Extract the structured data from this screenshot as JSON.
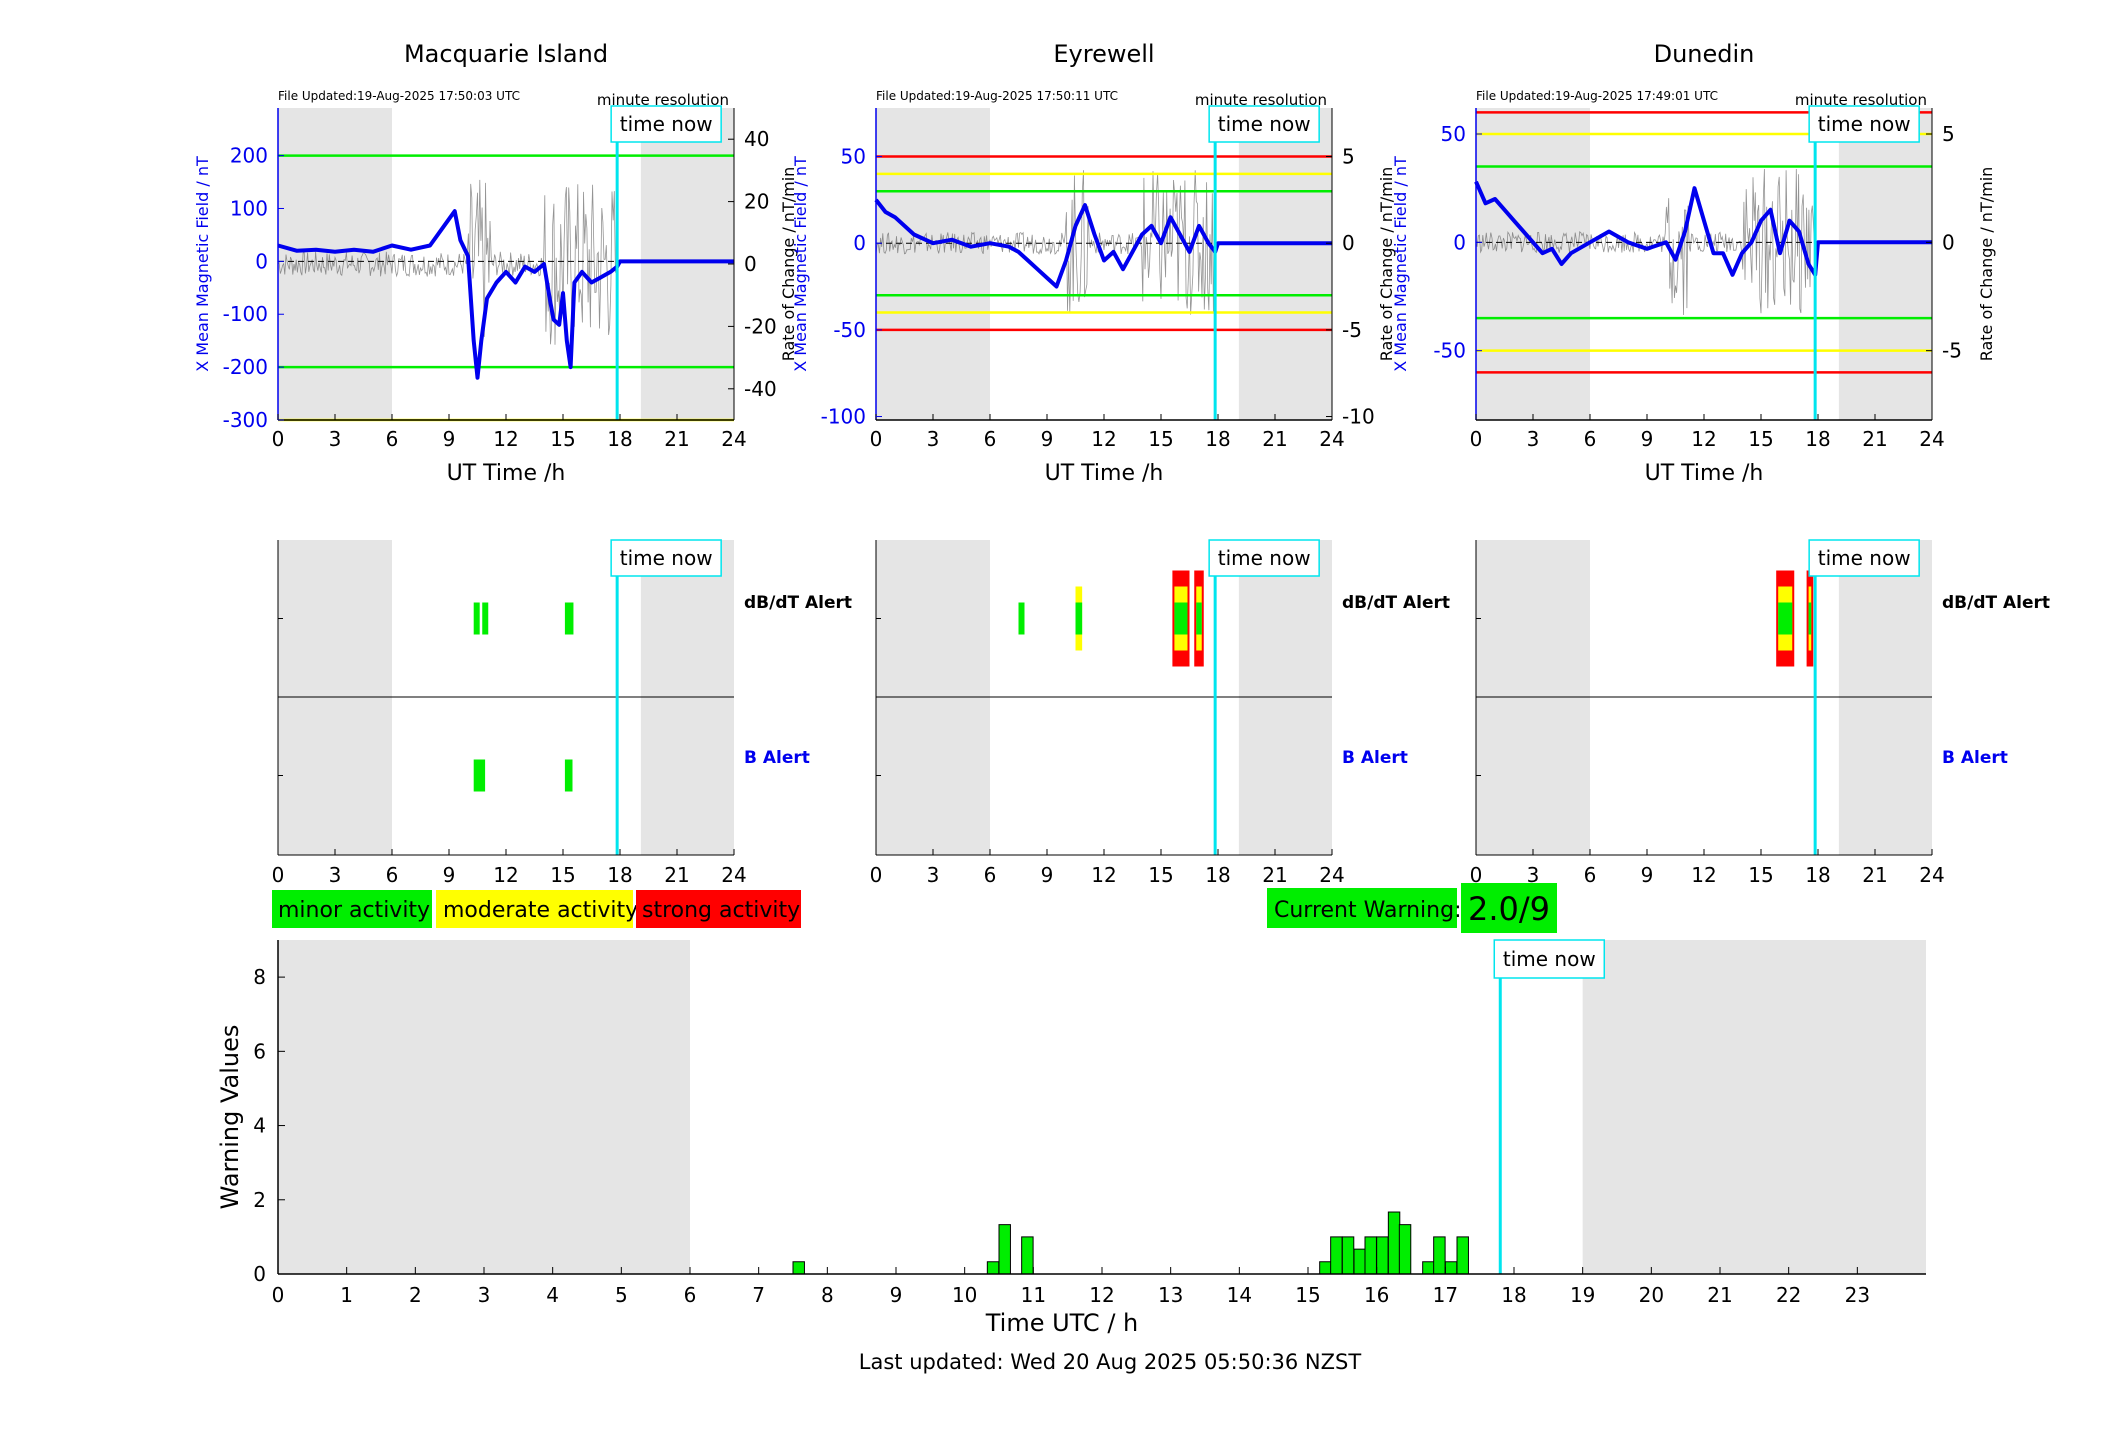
{
  "labels": {
    "time_now": "time now",
    "minute_resolution": "minute resolution",
    "ut_time": "UT Time /h",
    "dbdt_alert": "dB/dT Alert",
    "b_alert": "B Alert"
  },
  "legend": {
    "minor": "minor activity",
    "moderate": "moderate activity",
    "strong": "strong activity"
  },
  "current_warning": {
    "label": "Current Warning:",
    "value": "2.0/9"
  },
  "footer": {
    "last_updated": "Last updated: Wed 20 Aug 2025 05:50:36 NZST"
  },
  "colors": {
    "minor": "#00ee00",
    "moderate": "#ffff00",
    "strong": "#ff0000",
    "cyan": "#00e5ee",
    "blue": "#0000ee",
    "shade": "#e5e5e5"
  },
  "chart_data": [
    {
      "type": "line",
      "title": "Macquarie Island",
      "file_updated": "File Updated:19-Aug-2025 17:50:03 UTC",
      "xlabel": "UT Time /h",
      "xlim": [
        0,
        24
      ],
      "xticks": [
        0,
        3,
        6,
        9,
        12,
        15,
        18,
        21,
        24
      ],
      "ylabel_left": "X Mean Magnetic Field / nT",
      "ylim_left": [
        -300,
        290
      ],
      "yticks_left": [
        -300,
        -200,
        -100,
        0,
        100,
        200
      ],
      "ylabel_right": "Rate of Change / nT/min",
      "ylim_right": [
        -50,
        50
      ],
      "yticks_right": [
        -40,
        -20,
        0,
        20,
        40
      ],
      "thresholds": [
        {
          "value": 200,
          "color": "green"
        },
        {
          "value": -200,
          "color": "green"
        },
        {
          "value": -300,
          "color": "yellow"
        }
      ],
      "time_now": 17.85,
      "series": [
        {
          "name": "X Mean Magnetic Field",
          "x": [
            0,
            1,
            2,
            3,
            4,
            5,
            6,
            7,
            8,
            9,
            9.3,
            9.6,
            10,
            10.3,
            10.5,
            10.7,
            11,
            11.5,
            12,
            12.5,
            13,
            13.5,
            14,
            14.3,
            14.5,
            14.8,
            15,
            15.2,
            15.4,
            15.6,
            16,
            16.5,
            17,
            17.5,
            17.85,
            18,
            20,
            22,
            24
          ],
          "y": [
            30,
            20,
            22,
            18,
            22,
            18,
            30,
            22,
            30,
            80,
            95,
            40,
            10,
            -150,
            -220,
            -150,
            -70,
            -40,
            -20,
            -40,
            -10,
            -20,
            -5,
            -70,
            -110,
            -120,
            -60,
            -150,
            -200,
            -40,
            -20,
            -40,
            -30,
            -20,
            -10,
            0,
            0,
            0,
            0
          ]
        }
      ]
    },
    {
      "type": "line",
      "title": "Eyrewell",
      "file_updated": "File Updated:19-Aug-2025 17:50:11 UTC",
      "xlabel": "UT Time /h",
      "xlim": [
        0,
        24
      ],
      "xticks": [
        0,
        3,
        6,
        9,
        12,
        15,
        18,
        21,
        24
      ],
      "ylabel_left": "X Mean Magnetic Field / nT",
      "ylim_left": [
        -102,
        78
      ],
      "yticks_left": [
        -100,
        -50,
        0,
        50
      ],
      "ylabel_right": "Rate of Change / nT/min",
      "ylim_right": [
        -10.2,
        7.8
      ],
      "yticks_right": [
        -10,
        -5,
        0,
        5
      ],
      "thresholds": [
        {
          "value": 50,
          "color": "red"
        },
        {
          "value": 40,
          "color": "yellow"
        },
        {
          "value": 30,
          "color": "green"
        },
        {
          "value": -30,
          "color": "green"
        },
        {
          "value": -40,
          "color": "yellow"
        },
        {
          "value": -50,
          "color": "red"
        }
      ],
      "time_now": 17.85,
      "series": [
        {
          "name": "X Mean Magnetic Field",
          "x": [
            0,
            0.5,
            1,
            2,
            3,
            4,
            5,
            6,
            7,
            7.5,
            8,
            8.5,
            9,
            9.5,
            10,
            10.5,
            11,
            11.5,
            12,
            12.5,
            13,
            13.5,
            14,
            14.5,
            15,
            15.5,
            16,
            16.5,
            17,
            17.5,
            17.85,
            18,
            20,
            22,
            24
          ],
          "y": [
            25,
            18,
            15,
            5,
            0,
            2,
            -2,
            0,
            -2,
            -5,
            -10,
            -15,
            -20,
            -25,
            -10,
            10,
            22,
            5,
            -10,
            -5,
            -15,
            -5,
            5,
            10,
            0,
            15,
            5,
            -5,
            10,
            0,
            -5,
            0,
            0,
            0,
            0
          ]
        }
      ]
    },
    {
      "type": "line",
      "title": "Dunedin",
      "file_updated": "File Updated:19-Aug-2025 17:49:01 UTC",
      "xlabel": "UT Time /h",
      "xlim": [
        0,
        24
      ],
      "xticks": [
        0,
        3,
        6,
        9,
        12,
        15,
        18,
        21,
        24
      ],
      "ylabel_left": "X Mean Magnetic Field / nT",
      "ylim_left": [
        -82,
        62
      ],
      "yticks_left": [
        -50,
        0,
        50
      ],
      "ylabel_right": "Rate of Change / nT/min",
      "ylim_right": [
        -8.2,
        6.2
      ],
      "yticks_right": [
        -5,
        0,
        5
      ],
      "thresholds": [
        {
          "value": 60,
          "color": "red"
        },
        {
          "value": 50,
          "color": "yellow"
        },
        {
          "value": 35,
          "color": "green"
        },
        {
          "value": -35,
          "color": "green"
        },
        {
          "value": -50,
          "color": "yellow"
        },
        {
          "value": -60,
          "color": "red"
        }
      ],
      "time_now": 17.85,
      "series": [
        {
          "name": "X Mean Magnetic Field",
          "x": [
            0,
            0.5,
            1,
            1.5,
            2,
            3,
            3.5,
            4,
            4.5,
            5,
            6,
            7,
            8,
            9,
            10,
            10.5,
            11,
            11.5,
            12,
            12.5,
            13,
            13.5,
            14,
            14.5,
            15,
            15.5,
            16,
            16.5,
            17,
            17.5,
            17.85,
            18,
            20,
            22,
            24
          ],
          "y": [
            28,
            18,
            20,
            15,
            10,
            0,
            -5,
            -3,
            -10,
            -5,
            0,
            5,
            0,
            -3,
            0,
            -8,
            5,
            25,
            10,
            -5,
            -5,
            -15,
            -5,
            0,
            10,
            15,
            -5,
            10,
            5,
            -10,
            -15,
            0,
            0,
            0,
            0
          ]
        }
      ]
    },
    {
      "type": "alert",
      "station": "Macquarie Island",
      "xlim": [
        0,
        24
      ],
      "xticks": [
        0,
        3,
        6,
        9,
        12,
        15,
        18,
        21,
        24
      ],
      "time_now": 17.85,
      "rows": [
        "dB/dT Alert",
        "B Alert"
      ],
      "dbdt": [
        {
          "t0": 10.3,
          "t1": 10.6,
          "level": "minor"
        },
        {
          "t0": 10.75,
          "t1": 11.0,
          "level": "minor"
        },
        {
          "t0": 15.1,
          "t1": 15.55,
          "level": "minor"
        }
      ],
      "b": [
        {
          "t0": 10.3,
          "t1": 10.9,
          "level": "minor"
        },
        {
          "t0": 15.1,
          "t1": 15.5,
          "level": "minor"
        }
      ]
    },
    {
      "type": "alert",
      "station": "Eyrewell",
      "xlim": [
        0,
        24
      ],
      "xticks": [
        0,
        3,
        6,
        9,
        12,
        15,
        18,
        21,
        24
      ],
      "time_now": 17.85,
      "rows": [
        "dB/dT Alert",
        "B Alert"
      ],
      "dbdt": [
        {
          "t0": 7.5,
          "t1": 7.8,
          "level": "minor"
        },
        {
          "t0": 10.5,
          "t1": 10.85,
          "level": "moderate"
        },
        {
          "t0": 15.6,
          "t1": 16.5,
          "level": "strong"
        },
        {
          "t0": 16.75,
          "t1": 17.25,
          "level": "strong"
        }
      ],
      "b": []
    },
    {
      "type": "alert",
      "station": "Dunedin",
      "xlim": [
        0,
        24
      ],
      "xticks": [
        0,
        3,
        6,
        9,
        12,
        15,
        18,
        21,
        24
      ],
      "time_now": 17.85,
      "rows": [
        "dB/dT Alert",
        "B Alert"
      ],
      "dbdt": [
        {
          "t0": 15.8,
          "t1": 16.75,
          "level": "strong"
        },
        {
          "t0": 17.4,
          "t1": 17.75,
          "level": "strong"
        }
      ],
      "b": []
    },
    {
      "type": "bar",
      "title": "",
      "xlabel": "Time UTC / h",
      "ylabel": "Warning Values",
      "xlim": [
        0,
        24
      ],
      "ylim": [
        0,
        9
      ],
      "xticks": [
        0,
        1,
        2,
        3,
        4,
        5,
        6,
        7,
        8,
        9,
        10,
        11,
        12,
        13,
        14,
        15,
        16,
        17,
        18,
        19,
        20,
        21,
        22,
        23
      ],
      "yticks": [
        0,
        2,
        4,
        6,
        8
      ],
      "time_now": 17.8,
      "bar_width": 0.1667,
      "x": [
        7.5,
        10.33,
        10.5,
        10.83,
        15.17,
        15.33,
        15.5,
        15.67,
        15.83,
        16.0,
        16.17,
        16.33,
        16.67,
        16.83,
        17.0,
        17.17
      ],
      "values": [
        0.33,
        0.33,
        1.33,
        1.0,
        0.33,
        1.0,
        1.0,
        0.67,
        1.0,
        1.0,
        1.67,
        1.33,
        0.33,
        1.0,
        0.33,
        1.0
      ]
    }
  ]
}
